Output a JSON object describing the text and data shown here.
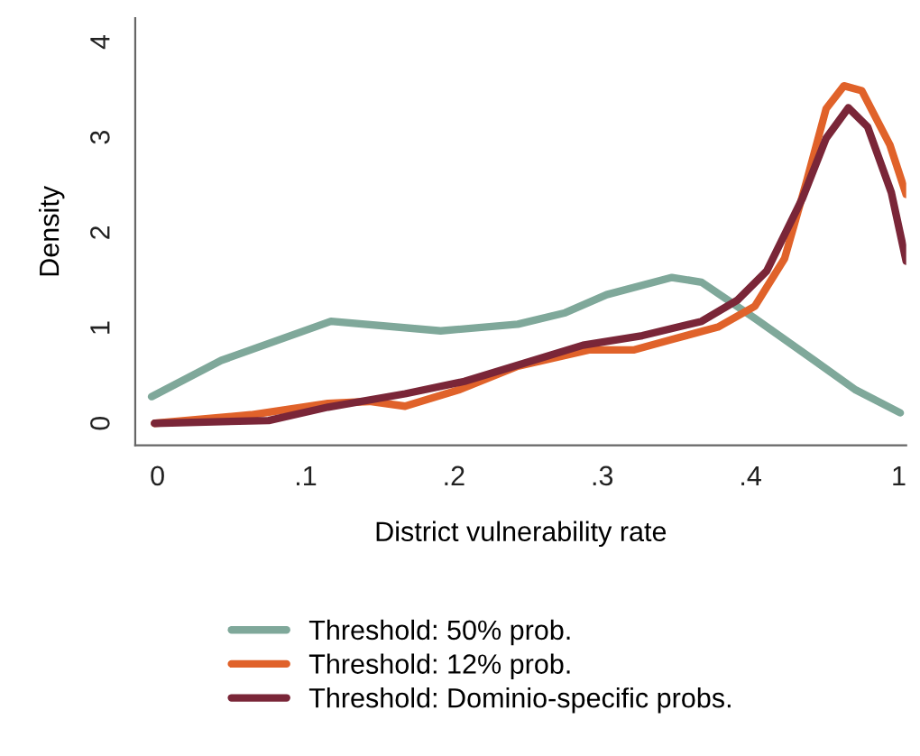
{
  "chart_data": {
    "type": "line",
    "xlabel": "District vulnerability rate",
    "ylabel": "Density",
    "xlim": [
      -0.015,
      0.505
    ],
    "ylim": [
      -0.23,
      4.25
    ],
    "xticks": [
      0,
      {
        "value": 0.1,
        "label": ".1"
      },
      {
        "value": 0.2,
        "label": ".2"
      },
      {
        "value": 0.3,
        "label": ".3"
      },
      {
        "value": 0.4,
        "label": ".4"
      },
      {
        "value": 0.5,
        "label": "1"
      }
    ],
    "yticks": [
      0,
      1,
      2,
      3,
      4
    ],
    "grid": false,
    "legend": "bottom",
    "line_style": "solid",
    "marker": "none",
    "series": [
      {
        "name": "Threshold: 50% prob.",
        "color": "#7fa89a",
        "x": [
          -0.004,
          0.043,
          0.117,
          0.191,
          0.243,
          0.275,
          0.303,
          0.347,
          0.367,
          0.403,
          0.443,
          0.471,
          0.501
        ],
        "values": [
          0.28,
          0.66,
          1.07,
          0.97,
          1.04,
          1.16,
          1.35,
          1.53,
          1.48,
          1.1,
          0.66,
          0.35,
          0.11
        ]
      },
      {
        "name": "Threshold: 12% prob.",
        "color": "#e0622a",
        "x": [
          -0.002,
          0.063,
          0.115,
          0.143,
          0.167,
          0.203,
          0.243,
          0.291,
          0.321,
          0.347,
          0.378,
          0.403,
          0.423,
          0.438,
          0.451,
          0.463,
          0.475,
          0.494,
          0.505
        ],
        "values": [
          0,
          0.09,
          0.21,
          0.23,
          0.18,
          0.35,
          0.6,
          0.77,
          0.77,
          0.88,
          1.01,
          1.23,
          1.73,
          2.55,
          3.3,
          3.54,
          3.49,
          2.92,
          2.4
        ]
      },
      {
        "name": "Threshold: Dominio-specific probs.",
        "color": "#7a2638",
        "x": [
          -0.002,
          0.075,
          0.115,
          0.167,
          0.207,
          0.247,
          0.287,
          0.327,
          0.367,
          0.391,
          0.411,
          0.435,
          0.451,
          0.466,
          0.479,
          0.495,
          0.505
        ],
        "values": [
          0,
          0.03,
          0.17,
          0.31,
          0.44,
          0.63,
          0.82,
          0.92,
          1.07,
          1.29,
          1.6,
          2.36,
          2.99,
          3.31,
          3.11,
          2.42,
          1.7
        ]
      }
    ]
  }
}
